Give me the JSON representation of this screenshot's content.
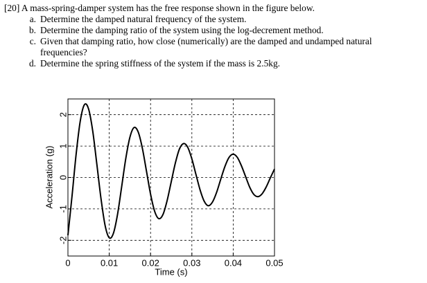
{
  "question": {
    "header": "[20] A mass-spring-damper system has the free response shown in the figure below.",
    "items": [
      {
        "label": "a.",
        "text": "Determine the damped natural frequency of the system."
      },
      {
        "label": "b.",
        "text": "Determine the damping ratio of the system using the log-decrement method."
      },
      {
        "label": "c.",
        "text": "Given that damping ratio, how close (numerically) are the damped and undamped natural frequencies?"
      },
      {
        "label": "d.",
        "text": "Determine the spring stiffness of the system if the mass is 2.5kg."
      }
    ]
  },
  "chart_data": {
    "type": "line",
    "x_label": "Time (s)",
    "y_label": "Acceleration (g)",
    "x": [
      0,
      0.001,
      0.002,
      0.003,
      0.004,
      0.005,
      0.006,
      0.007,
      0.008,
      0.009,
      0.01,
      0.011,
      0.012,
      0.013,
      0.014,
      0.015,
      0.016,
      0.017,
      0.018,
      0.019,
      0.02,
      0.021,
      0.022,
      0.023,
      0.024,
      0.025,
      0.026,
      0.027,
      0.028,
      0.029,
      0.03,
      0.031,
      0.032,
      0.033,
      0.034,
      0.035,
      0.036,
      0.037,
      0.038,
      0.039,
      0.04,
      0.041,
      0.042,
      0.043,
      0.044,
      0.045,
      0.046,
      0.047,
      0.048,
      0.049,
      0.05
    ],
    "series": [
      {
        "color": "#000000",
        "values": [
          -1.84,
          -0.58,
          0.76,
          1.81,
          2.32,
          2.18,
          1.48,
          0.42,
          -0.67,
          -1.53,
          -1.92,
          -1.78,
          -1.18,
          -0.3,
          0.6,
          1.28,
          1.59,
          1.45,
          0.94,
          0.21,
          -0.53,
          -1.08,
          -1.31,
          -1.18,
          -0.74,
          -0.14,
          0.46,
          0.91,
          1.08,
          0.96,
          0.59,
          0.09,
          -0.4,
          -0.76,
          -0.9,
          -0.78,
          -0.47,
          -0.05,
          0.35,
          0.64,
          0.74,
          0.64,
          0.37,
          0.03,
          -0.31,
          -0.54,
          -0.61,
          -0.52,
          -0.3,
          -0.01,
          0.27
        ]
      }
    ],
    "xlim": [
      0,
      0.05
    ],
    "xticks": [
      0,
      0.01,
      0.02,
      0.03,
      0.04,
      0.05
    ],
    "ylim": [
      -2.5,
      2.5
    ],
    "yticks": [
      -2,
      -1,
      0,
      1,
      2
    ],
    "grid": true
  }
}
